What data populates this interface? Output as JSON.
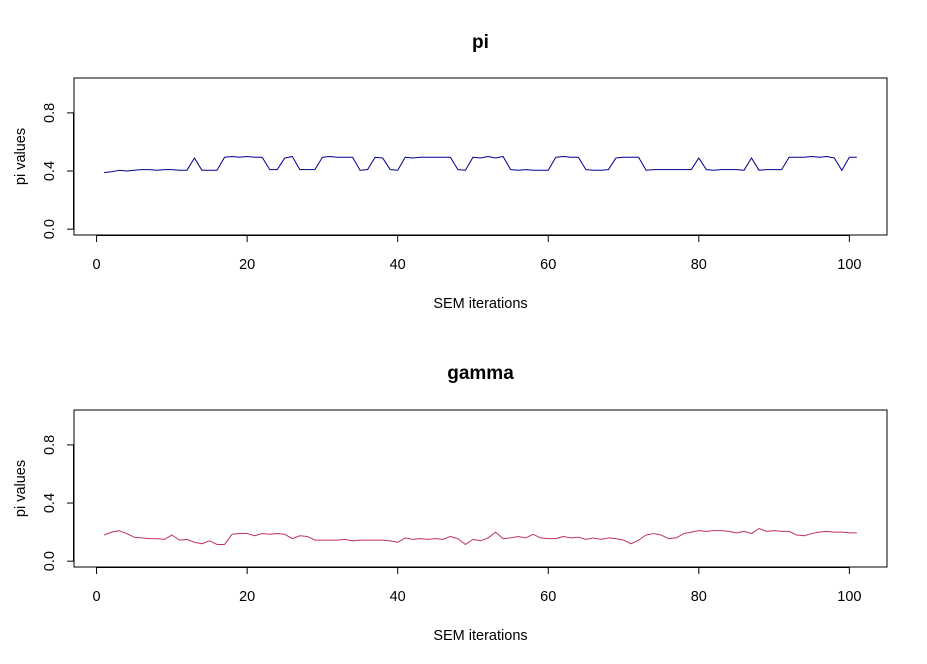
{
  "chart_data": [
    {
      "type": "line",
      "title": "pi",
      "xlabel": "SEM iterations",
      "ylabel": "pi values",
      "xlim": [
        1,
        101
      ],
      "ylim": [
        0,
        1
      ],
      "xticks": [
        "0",
        "20",
        "40",
        "60",
        "80",
        "100"
      ],
      "yticks": [
        "0.0",
        "0.4",
        "0.8"
      ],
      "xtick_values": [
        0,
        20,
        40,
        60,
        80,
        100
      ],
      "ytick_values": [
        0,
        0.4,
        0.8
      ],
      "grid": false,
      "series": [
        {
          "color": "#00008b",
          "x": [
            1,
            2,
            3,
            4,
            5,
            6,
            7,
            8,
            9,
            10,
            11,
            12,
            13,
            14,
            15,
            16,
            17,
            18,
            19,
            20,
            21,
            22,
            23,
            24,
            25,
            26,
            27,
            28,
            29,
            30,
            31,
            32,
            33,
            34,
            35,
            36,
            37,
            38,
            39,
            40,
            41,
            42,
            43,
            44,
            45,
            46,
            47,
            48,
            49,
            50,
            51,
            52,
            53,
            54,
            55,
            56,
            57,
            58,
            59,
            60,
            61,
            62,
            63,
            64,
            65,
            66,
            67,
            68,
            69,
            70,
            71,
            72,
            73,
            74,
            75,
            76,
            77,
            78,
            79,
            80,
            81,
            82,
            83,
            84,
            85,
            86,
            87,
            88,
            89,
            90,
            91,
            92,
            93,
            94,
            95,
            96,
            97,
            98,
            99,
            100,
            101
          ],
          "y": [
            0.39,
            0.395,
            0.405,
            0.4,
            0.405,
            0.41,
            0.41,
            0.405,
            0.41,
            0.41,
            0.405,
            0.405,
            0.49,
            0.405,
            0.405,
            0.405,
            0.495,
            0.5,
            0.495,
            0.5,
            0.495,
            0.495,
            0.41,
            0.41,
            0.49,
            0.5,
            0.41,
            0.41,
            0.41,
            0.495,
            0.5,
            0.495,
            0.495,
            0.495,
            0.405,
            0.41,
            0.495,
            0.49,
            0.41,
            0.405,
            0.495,
            0.49,
            0.495,
            0.495,
            0.495,
            0.495,
            0.495,
            0.41,
            0.405,
            0.495,
            0.49,
            0.5,
            0.49,
            0.5,
            0.41,
            0.405,
            0.41,
            0.405,
            0.405,
            0.405,
            0.495,
            0.5,
            0.495,
            0.495,
            0.41,
            0.405,
            0.405,
            0.41,
            0.49,
            0.495,
            0.495,
            0.495,
            0.405,
            0.41,
            0.41,
            0.41,
            0.41,
            0.41,
            0.41,
            0.49,
            0.41,
            0.405,
            0.41,
            0.41,
            0.41,
            0.405,
            0.49,
            0.405,
            0.41,
            0.41,
            0.41,
            0.495,
            0.495,
            0.495,
            0.5,
            0.495,
            0.5,
            0.49,
            0.405,
            0.495,
            0.495
          ]
        }
      ]
    },
    {
      "type": "line",
      "title": "gamma",
      "xlabel": "SEM iterations",
      "ylabel": "pi values",
      "xlim": [
        1,
        101
      ],
      "ylim": [
        0,
        1
      ],
      "xticks": [
        "0",
        "20",
        "40",
        "60",
        "80",
        "100"
      ],
      "yticks": [
        "0.0",
        "0.4",
        "0.8"
      ],
      "xtick_values": [
        0,
        20,
        40,
        60,
        80,
        100
      ],
      "ytick_values": [
        0,
        0.4,
        0.8
      ],
      "grid": false,
      "series": [
        {
          "color": "#c0306a",
          "x": [
            1,
            2,
            3,
            4,
            5,
            6,
            7,
            8,
            9,
            10,
            11,
            12,
            13,
            14,
            15,
            16,
            17,
            18,
            19,
            20,
            21,
            22,
            23,
            24,
            25,
            26,
            27,
            28,
            29,
            30,
            31,
            32,
            33,
            34,
            35,
            36,
            37,
            38,
            39,
            40,
            41,
            42,
            43,
            44,
            45,
            46,
            47,
            48,
            49,
            50,
            51,
            52,
            53,
            54,
            55,
            56,
            57,
            58,
            59,
            60,
            61,
            62,
            63,
            64,
            65,
            66,
            67,
            68,
            69,
            70,
            71,
            72,
            73,
            74,
            75,
            76,
            77,
            78,
            79,
            80,
            81,
            82,
            83,
            84,
            85,
            86,
            87,
            88,
            89,
            90,
            91,
            92,
            93,
            94,
            95,
            96,
            97,
            98,
            99,
            100,
            101
          ],
          "y": [
            0.18,
            0.2,
            0.21,
            0.19,
            0.165,
            0.16,
            0.155,
            0.155,
            0.15,
            0.18,
            0.145,
            0.15,
            0.13,
            0.12,
            0.14,
            0.115,
            0.115,
            0.185,
            0.19,
            0.19,
            0.175,
            0.19,
            0.185,
            0.19,
            0.185,
            0.155,
            0.175,
            0.17,
            0.145,
            0.145,
            0.145,
            0.145,
            0.15,
            0.14,
            0.145,
            0.145,
            0.145,
            0.145,
            0.14,
            0.13,
            0.16,
            0.15,
            0.155,
            0.15,
            0.155,
            0.15,
            0.17,
            0.155,
            0.115,
            0.15,
            0.14,
            0.16,
            0.2,
            0.155,
            0.16,
            0.17,
            0.16,
            0.185,
            0.16,
            0.155,
            0.155,
            0.17,
            0.16,
            0.165,
            0.15,
            0.16,
            0.15,
            0.16,
            0.155,
            0.145,
            0.12,
            0.145,
            0.18,
            0.19,
            0.18,
            0.155,
            0.16,
            0.19,
            0.2,
            0.21,
            0.205,
            0.21,
            0.21,
            0.205,
            0.195,
            0.205,
            0.19,
            0.225,
            0.205,
            0.21,
            0.205,
            0.205,
            0.18,
            0.175,
            0.19,
            0.2,
            0.205,
            0.2,
            0.2,
            0.195,
            0.195
          ]
        }
      ]
    }
  ]
}
